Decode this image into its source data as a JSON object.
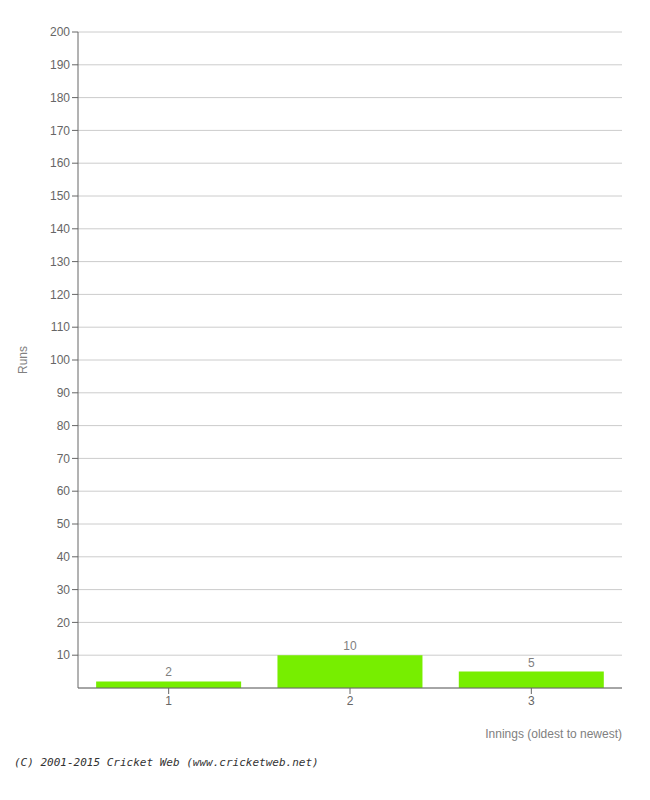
{
  "chart_data": {
    "type": "bar",
    "categories": [
      1,
      2,
      3
    ],
    "values": [
      2,
      10,
      5
    ],
    "color": "#77ee00",
    "xlabel": "Innings (oldest to newest)",
    "ylabel": "Runs",
    "ylim": [
      0,
      200
    ],
    "yticks": [
      10,
      20,
      30,
      40,
      50,
      60,
      70,
      80,
      90,
      100,
      110,
      120,
      130,
      140,
      150,
      160,
      170,
      180,
      190,
      200
    ],
    "grid": true,
    "data_labels": true,
    "annotations": [
      "(C) 2001-2015 Cricket Web (www.cricketweb.net)"
    ]
  }
}
